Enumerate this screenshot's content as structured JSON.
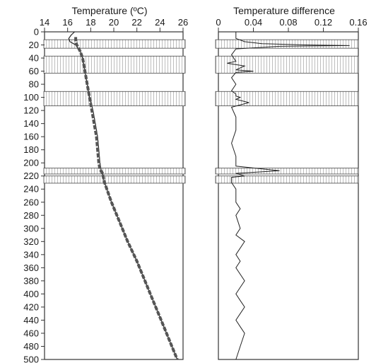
{
  "chart_data": [
    {
      "type": "line",
      "panel": "temperature",
      "title": "Temperature (ºC)",
      "x_ticks": [
        14,
        16,
        18,
        20,
        22,
        24,
        26
      ],
      "xlim": [
        14,
        26
      ],
      "y_ticks": [
        0,
        20,
        40,
        60,
        80,
        100,
        120,
        140,
        160,
        180,
        200,
        220,
        240,
        260,
        280,
        300,
        320,
        340,
        360,
        380,
        400,
        420,
        440,
        460,
        480,
        500
      ],
      "ylim": [
        0,
        500
      ],
      "y_inverted": true,
      "series": [
        {
          "line_style": "solid",
          "x": [
            16.6,
            16.3,
            16.1,
            16.2,
            16.7,
            17.1,
            17.3,
            17.5,
            17.7,
            17.9,
            18.2,
            18.4,
            18.6,
            18.7,
            18.8,
            18.9,
            19.0,
            19.2,
            19.8,
            20.5,
            21.2,
            22.0,
            22.7,
            23.4,
            24.1,
            24.8,
            25.5
          ],
          "y": [
            0,
            5,
            10,
            15,
            20,
            30,
            40,
            60,
            80,
            100,
            120,
            140,
            160,
            180,
            200,
            210,
            215,
            230,
            260,
            290,
            320,
            350,
            380,
            410,
            440,
            470,
            500
          ]
        },
        {
          "line_style": "dashed",
          "x": [
            16.7,
            16.7,
            16.8,
            17.1,
            17.3,
            17.5,
            17.7,
            17.9,
            18.1,
            18.3,
            18.5,
            18.6,
            18.7,
            18.8,
            19.0,
            19.2,
            19.8,
            20.5,
            21.2,
            22.0,
            22.7,
            23.4,
            24.1,
            24.8,
            25.5
          ],
          "y": [
            8,
            15,
            20,
            30,
            40,
            60,
            80,
            100,
            120,
            140,
            160,
            180,
            200,
            210,
            215,
            230,
            260,
            290,
            320,
            350,
            380,
            410,
            440,
            470,
            500
          ]
        }
      ],
      "shaded_depth_bands": [
        [
          12,
          25
        ],
        [
          37,
          63
        ],
        [
          91,
          113
        ],
        [
          208,
          217
        ],
        [
          220,
          231
        ]
      ]
    },
    {
      "type": "line",
      "panel": "difference",
      "title": "Temperature difference",
      "x_ticks": [
        "0",
        "0.04",
        "0.08",
        "0.12",
        "0.16"
      ],
      "xlim": [
        0,
        0.16
      ],
      "ylim": [
        0,
        500
      ],
      "y_inverted": true,
      "series": [
        {
          "line_style": "solid",
          "x": [
            0.02,
            0.02,
            0.03,
            0.05,
            0.1,
            0.15,
            0.07,
            0.02,
            0.015,
            0.02,
            0.01,
            0.03,
            0.02,
            0.04,
            0.02,
            0.015,
            0.02,
            0.015,
            0.02,
            0.02,
            0.025,
            0.02,
            0.035,
            0.015,
            0.02,
            0.02,
            0.015,
            0.02,
            0.02,
            0.07,
            0.02,
            0.03,
            0.015,
            0.015,
            0.02,
            0.02,
            0.025,
            0.02,
            0.025,
            0.02,
            0.03,
            0.02,
            0.025,
            0.02,
            0.03,
            0.025,
            0.02,
            0.025,
            0.03,
            0.025,
            0.02,
            0.025,
            0.03,
            0.025,
            0.02
          ],
          "y": [
            0,
            10,
            15,
            18,
            20,
            21,
            22,
            26,
            35,
            45,
            48,
            52,
            58,
            60,
            62,
            70,
            80,
            90,
            95,
            98,
            100,
            103,
            108,
            115,
            130,
            150,
            170,
            190,
            205,
            212,
            216,
            220,
            222,
            230,
            240,
            260,
            270,
            280,
            300,
            310,
            320,
            340,
            350,
            360,
            380,
            390,
            400,
            410,
            420,
            430,
            440,
            450,
            460,
            480,
            500
          ]
        }
      ],
      "shaded_depth_bands": [
        [
          12,
          25
        ],
        [
          37,
          63
        ],
        [
          91,
          113
        ],
        [
          208,
          217
        ],
        [
          220,
          231
        ]
      ]
    }
  ]
}
